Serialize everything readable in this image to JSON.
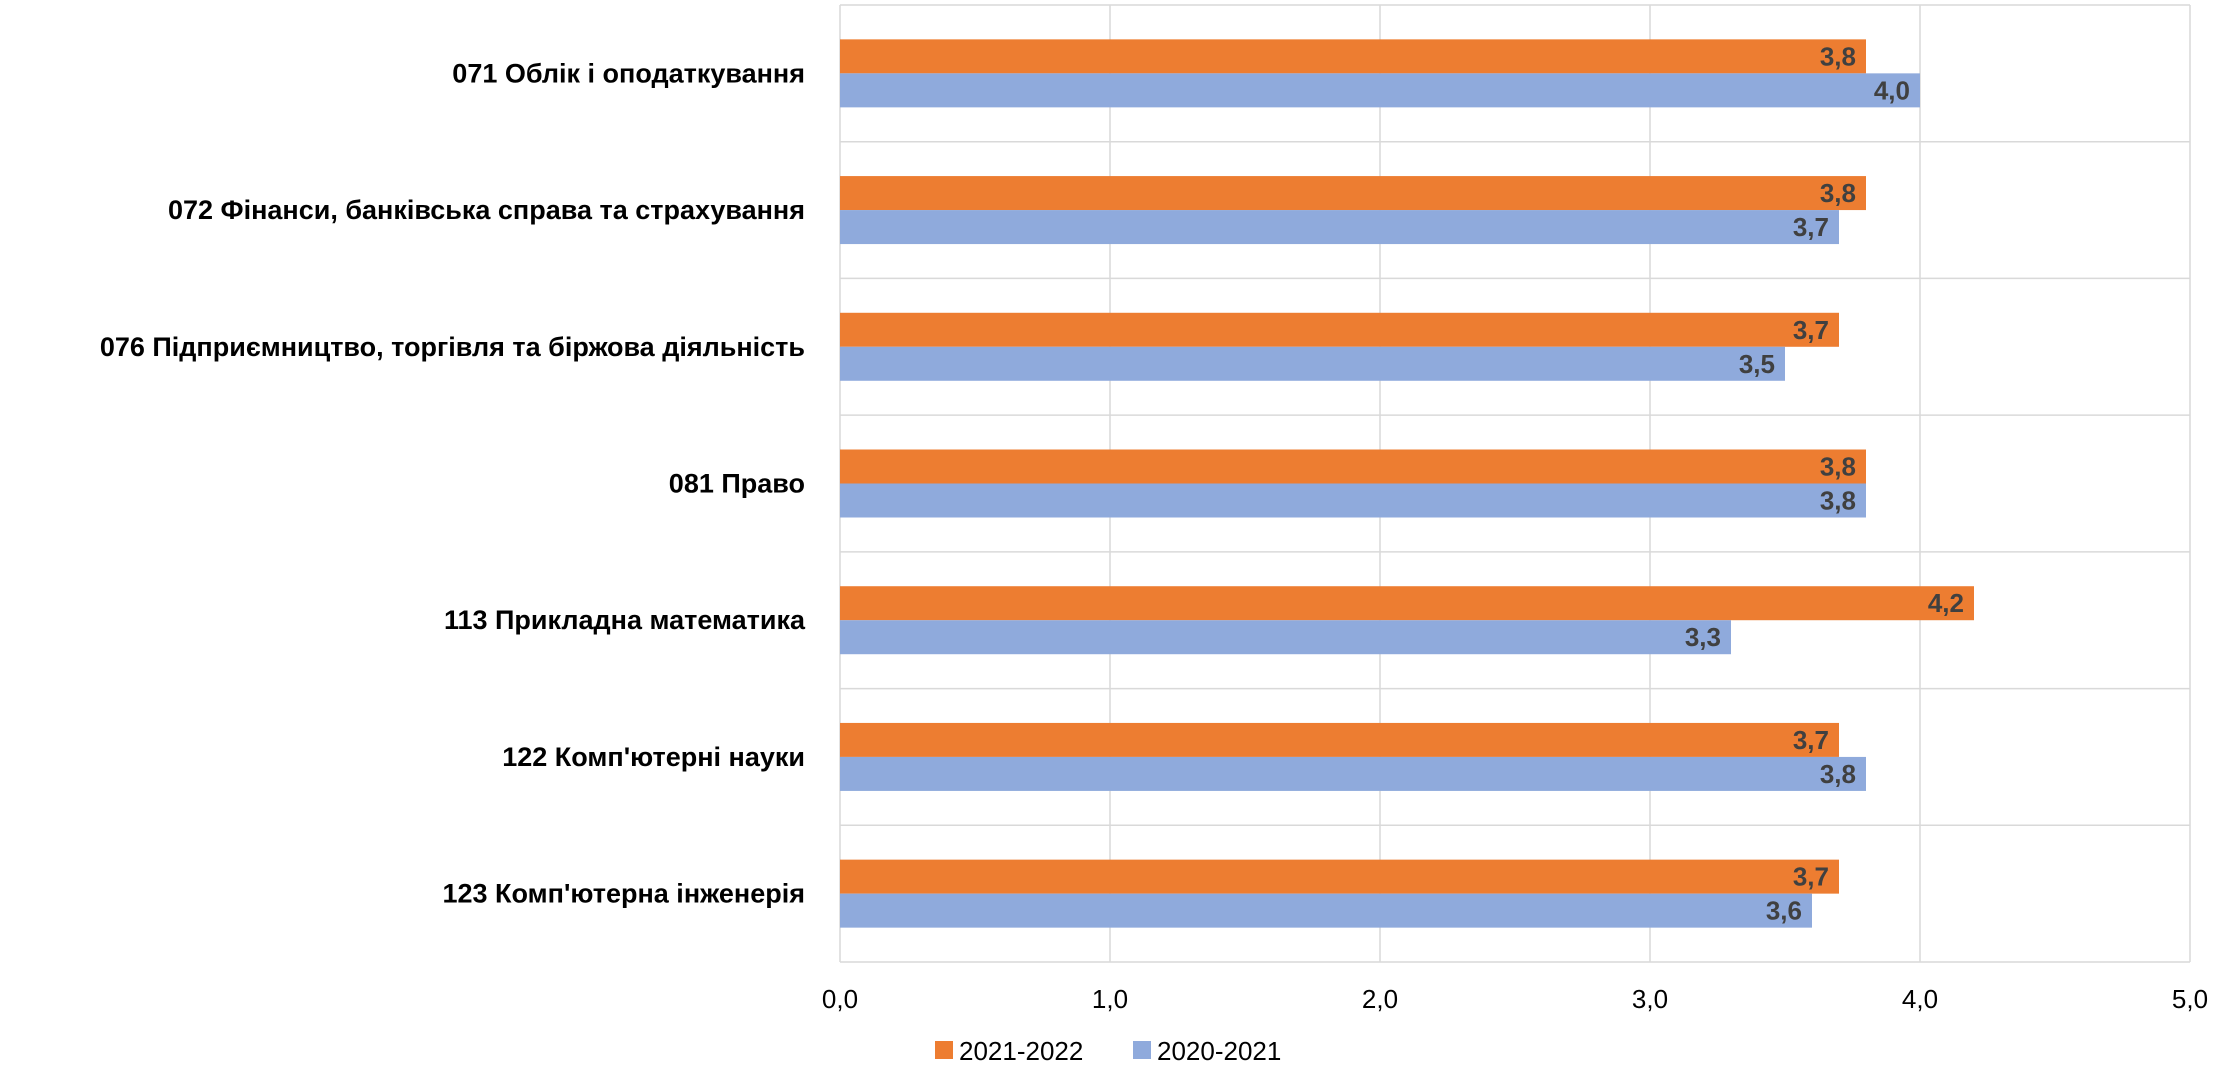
{
  "chart_data": {
    "type": "bar",
    "orientation": "horizontal",
    "categories": [
      "071 Облік і оподаткування",
      "072 Фінанси, банківська справа та страхування",
      "076 Підприємництво, торгівля та біржова діяльність",
      "081 Право",
      "113 Прикладна математика",
      "122 Комп'ютерні науки",
      "123 Комп'ютерна інженерія"
    ],
    "series": [
      {
        "name": "2021-2022",
        "color": "#ED7D31",
        "values": [
          3.8,
          3.8,
          3.7,
          3.8,
          4.2,
          3.7,
          3.7
        ],
        "labels": [
          "3,8",
          "3,8",
          "3,7",
          "3,8",
          "4,2",
          "3,7",
          "3,7"
        ]
      },
      {
        "name": "2020-2021",
        "color": "#8FAADC",
        "values": [
          4.0,
          3.7,
          3.5,
          3.8,
          3.3,
          3.8,
          3.6
        ],
        "labels": [
          "4,0",
          "3,7",
          "3,5",
          "3,8",
          "3,3",
          "3,8",
          "3,6"
        ]
      }
    ],
    "xlim": [
      0,
      5
    ],
    "xticks": [
      "0,0",
      "1,0",
      "2,0",
      "3,0",
      "4,0",
      "5,0"
    ],
    "grid": true,
    "legend": "bottom-center",
    "title": "",
    "xlabel": "",
    "ylabel": ""
  }
}
